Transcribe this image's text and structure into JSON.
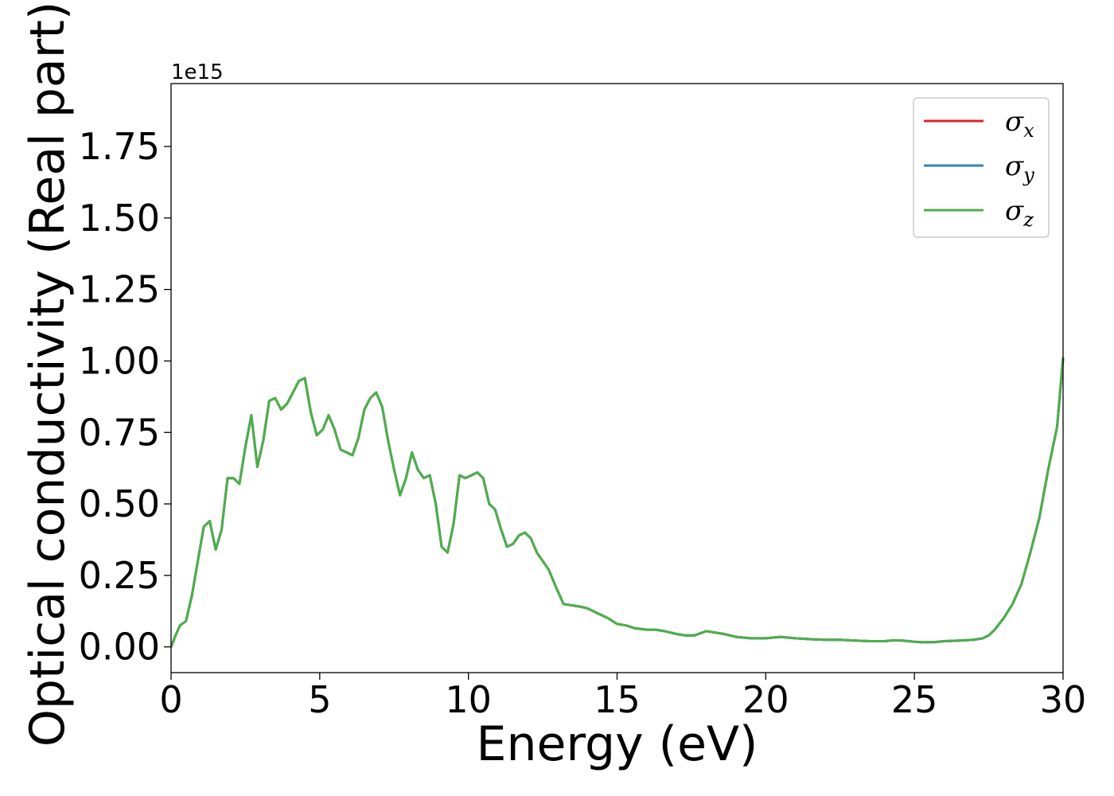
{
  "chart_data": {
    "type": "line",
    "title": "",
    "xlabel": "Energy (eV)",
    "ylabel": "Optical conductivity (Real part)",
    "y_offset_text": "1e15",
    "xlim": [
      0,
      30
    ],
    "ylim": [
      -0.09,
      1.97
    ],
    "x_ticks": [
      0,
      5,
      10,
      15,
      20,
      25,
      30
    ],
    "x_tick_labels": [
      "0",
      "5",
      "10",
      "15",
      "20",
      "25",
      "30"
    ],
    "y_ticks": [
      0,
      0.25,
      0.5,
      0.75,
      1.0,
      1.25,
      1.5,
      1.75
    ],
    "y_tick_labels": [
      "0.00",
      "0.25",
      "0.50",
      "0.75",
      "1.00",
      "1.25",
      "1.50",
      "1.75"
    ],
    "grid": false,
    "legend_position": "top-right",
    "series": [
      {
        "name": "σx",
        "label_base": "σ",
        "label_sub": "x",
        "color": "#d62728",
        "data_ref": "shared"
      },
      {
        "name": "σy",
        "label_base": "σ",
        "label_sub": "y",
        "color": "#3a7fb5",
        "data_ref": "shared"
      },
      {
        "name": "σz",
        "label_base": "σ",
        "label_sub": "z",
        "color": "#4daf4a",
        "data_ref": "shared"
      }
    ],
    "x": [
      0,
      0.15,
      0.3,
      0.5,
      0.7,
      0.9,
      1.1,
      1.3,
      1.5,
      1.7,
      1.9,
      2.1,
      2.3,
      2.5,
      2.7,
      2.9,
      3.1,
      3.3,
      3.5,
      3.7,
      3.9,
      4.1,
      4.3,
      4.5,
      4.7,
      4.9,
      5.1,
      5.3,
      5.5,
      5.7,
      5.9,
      6.1,
      6.3,
      6.5,
      6.7,
      6.9,
      7.1,
      7.3,
      7.5,
      7.7,
      7.9,
      8.1,
      8.3,
      8.5,
      8.7,
      8.9,
      9.1,
      9.3,
      9.5,
      9.7,
      9.9,
      10.1,
      10.3,
      10.5,
      10.7,
      10.9,
      11.1,
      11.3,
      11.5,
      11.7,
      11.9,
      12.1,
      12.3,
      12.5,
      12.7,
      12.9,
      13.2,
      13.5,
      13.8,
      14.0,
      14.3,
      14.7,
      15.0,
      15.3,
      15.6,
      16.0,
      16.3,
      16.6,
      17.0,
      17.3,
      17.6,
      18.0,
      18.3,
      18.6,
      19.0,
      19.5,
      20.0,
      20.5,
      21.0,
      21.5,
      22.0,
      22.5,
      23.0,
      23.5,
      24.0,
      24.3,
      24.6,
      25.0,
      25.3,
      25.7,
      26.0,
      26.5,
      27.0,
      27.3,
      27.5,
      27.7,
      28.0,
      28.3,
      28.6,
      28.9,
      29.2,
      29.5,
      29.8,
      30.0
    ],
    "y": [
      0.0,
      0.04,
      0.075,
      0.09,
      0.18,
      0.3,
      0.42,
      0.44,
      0.34,
      0.41,
      0.59,
      0.59,
      0.57,
      0.7,
      0.81,
      0.63,
      0.72,
      0.86,
      0.87,
      0.83,
      0.85,
      0.89,
      0.93,
      0.94,
      0.82,
      0.74,
      0.76,
      0.81,
      0.76,
      0.69,
      0.68,
      0.67,
      0.73,
      0.83,
      0.87,
      0.89,
      0.84,
      0.72,
      0.62,
      0.53,
      0.59,
      0.68,
      0.62,
      0.59,
      0.6,
      0.5,
      0.35,
      0.33,
      0.43,
      0.6,
      0.59,
      0.6,
      0.61,
      0.59,
      0.5,
      0.48,
      0.41,
      0.35,
      0.36,
      0.39,
      0.4,
      0.38,
      0.33,
      0.3,
      0.27,
      0.22,
      0.15,
      0.145,
      0.14,
      0.135,
      0.12,
      0.1,
      0.08,
      0.075,
      0.065,
      0.06,
      0.06,
      0.055,
      0.045,
      0.04,
      0.04,
      0.055,
      0.05,
      0.045,
      0.035,
      0.03,
      0.03,
      0.035,
      0.03,
      0.027,
      0.025,
      0.025,
      0.022,
      0.02,
      0.02,
      0.023,
      0.022,
      0.018,
      0.016,
      0.017,
      0.02,
      0.022,
      0.025,
      0.03,
      0.04,
      0.06,
      0.1,
      0.15,
      0.22,
      0.33,
      0.45,
      0.62,
      0.77,
      1.01
    ]
  }
}
